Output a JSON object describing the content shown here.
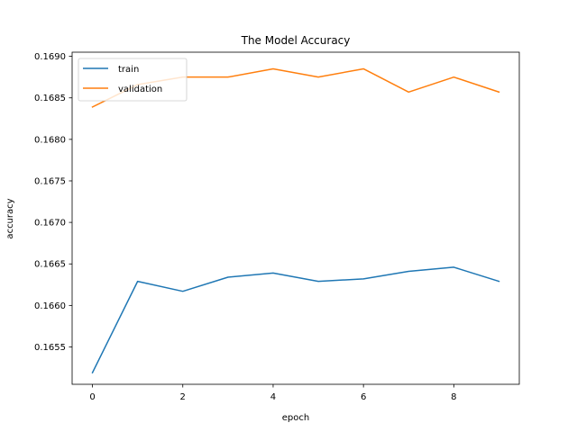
{
  "chart_data": {
    "type": "line",
    "title": "The Model Accuracy",
    "xlabel": "epoch",
    "ylabel": "accuracy",
    "x": [
      0,
      1,
      2,
      3,
      4,
      5,
      6,
      7,
      8,
      9
    ],
    "xlim": [
      -0.45,
      9.45
    ],
    "ylim": [
      0.16505,
      0.16905
    ],
    "xticks": [
      0,
      2,
      4,
      6,
      8
    ],
    "xtick_labels": [
      "0",
      "2",
      "4",
      "6",
      "8"
    ],
    "yticks": [
      0.1655,
      0.166,
      0.1665,
      0.167,
      0.1675,
      0.168,
      0.1685,
      0.169
    ],
    "ytick_labels": [
      "0.1655",
      "0.1660",
      "0.1665",
      "0.1670",
      "0.1675",
      "0.1680",
      "0.1685",
      "0.1690"
    ],
    "grid": false,
    "legend_position": "upper-left",
    "series": [
      {
        "name": "train",
        "color": "#1f77b4",
        "values": [
          0.16519,
          0.16629,
          0.16617,
          0.16634,
          0.16639,
          0.16629,
          0.16632,
          0.16641,
          0.16646,
          0.16629
        ]
      },
      {
        "name": "validation",
        "color": "#ff7f0e",
        "values": [
          0.16839,
          0.16866,
          0.16875,
          0.16875,
          0.16885,
          0.16875,
          0.16885,
          0.16857,
          0.16875,
          0.16857
        ]
      }
    ]
  }
}
